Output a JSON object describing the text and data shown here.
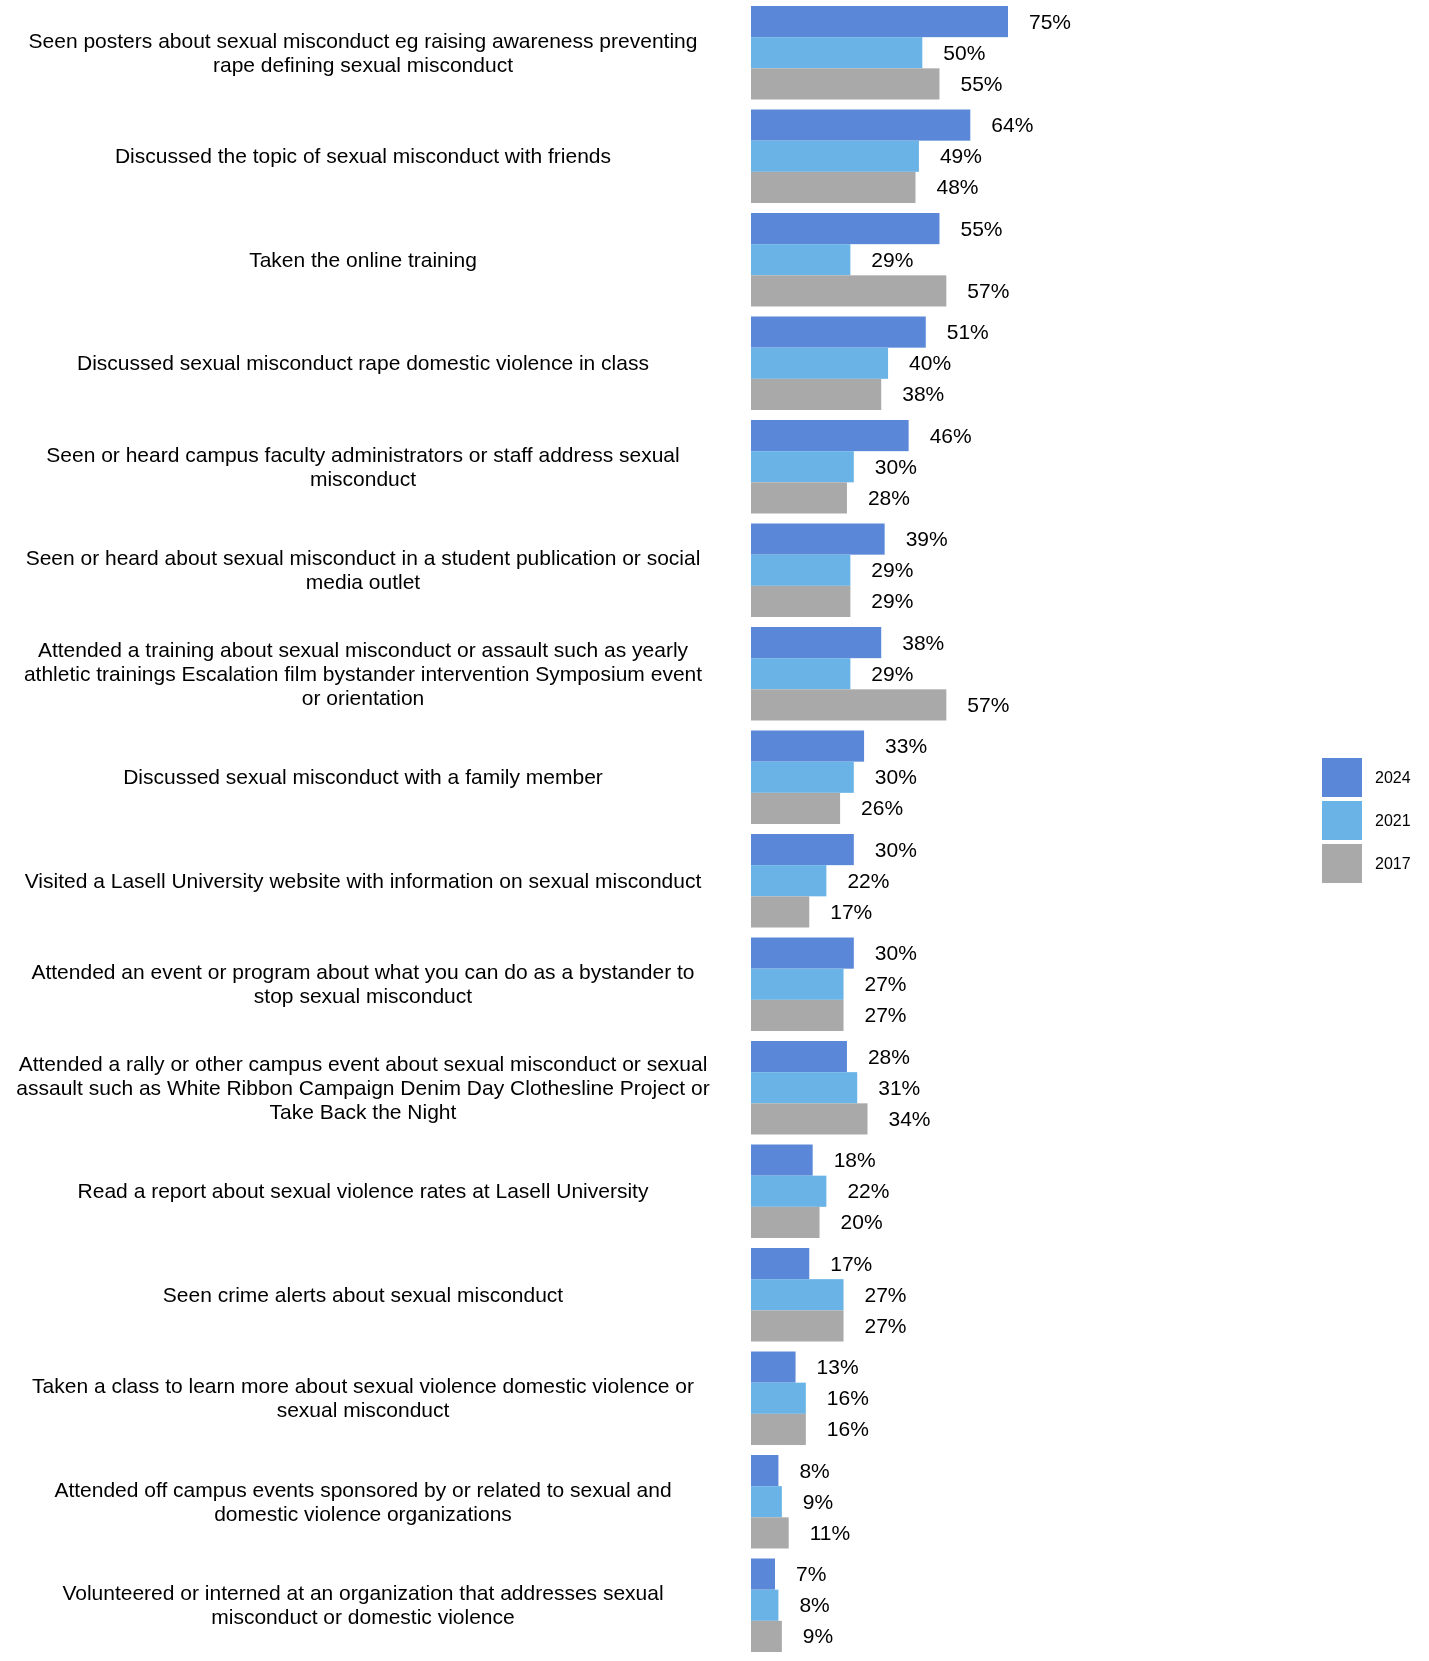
{
  "chart_data": {
    "type": "bar",
    "orientation": "horizontal",
    "legend": "right",
    "categories": [
      "Seen posters about sexual misconduct eg raising awareness preventing rape defining sexual misconduct",
      "Discussed the topic of sexual misconduct with friends",
      "Taken the online training",
      "Discussed sexual misconduct rape domestic violence in class",
      "Seen or heard campus faculty administrators or staff address sexual misconduct",
      "Seen or heard about sexual misconduct in a student publication or social media outlet",
      "Attended a training about sexual misconduct or assault such as yearly athletic trainings Escalation film bystander intervention Symposium event or orientation",
      "Discussed sexual misconduct with a family member",
      "Visited a Lasell University website with information on sexual misconduct",
      "Attended an event or program about what you can do as a bystander to stop sexual misconduct",
      "Attended a rally or other campus event about sexual misconduct or sexual assault such as White Ribbon Campaign Denim Day Clothesline Project or Take Back the Night",
      "Read a report about sexual violence rates at Lasell University",
      "Seen crime alerts about sexual misconduct",
      "Taken a class to learn more about sexual violence domestic violence or sexual misconduct",
      "Attended off campus events sponsored by or related to sexual and domestic violence organizations",
      "Volunteered or interned at an organization that addresses sexual misconduct or domestic violence"
    ],
    "series": [
      {
        "name": "2024",
        "color": "#5b87d9",
        "values": [
          75,
          64,
          55,
          51,
          46,
          39,
          38,
          33,
          30,
          30,
          28,
          18,
          17,
          13,
          8,
          7
        ],
        "value_labels": [
          "75%",
          "64%",
          "55%",
          "51%",
          "46%",
          "39%",
          "38%",
          "33%",
          "30%",
          "30%",
          "28%",
          "18%",
          "17%",
          "13%",
          "8%",
          "7%"
        ]
      },
      {
        "name": "2021",
        "color": "#69b3e7",
        "values": [
          50,
          49,
          29,
          40,
          30,
          29,
          29,
          30,
          22,
          27,
          31,
          22,
          27,
          16,
          9,
          8
        ],
        "value_labels": [
          "50%",
          "49%",
          "29%",
          "40%",
          "30%",
          "29%",
          "29%",
          "30%",
          "22%",
          "27%",
          "31%",
          "22%",
          "27%",
          "16%",
          "9%",
          "8%"
        ]
      },
      {
        "name": "2017",
        "color": "#a9a9a9",
        "values": [
          55,
          48,
          57,
          38,
          28,
          29,
          57,
          26,
          17,
          27,
          34,
          20,
          27,
          16,
          11,
          9
        ],
        "value_labels": [
          "55%",
          "48%",
          "57%",
          "38%",
          "28%",
          "29%",
          "57%",
          "26%",
          "17%",
          "27%",
          "34%",
          "20%",
          "27%",
          "16%",
          "11%",
          "9%"
        ]
      }
    ]
  }
}
